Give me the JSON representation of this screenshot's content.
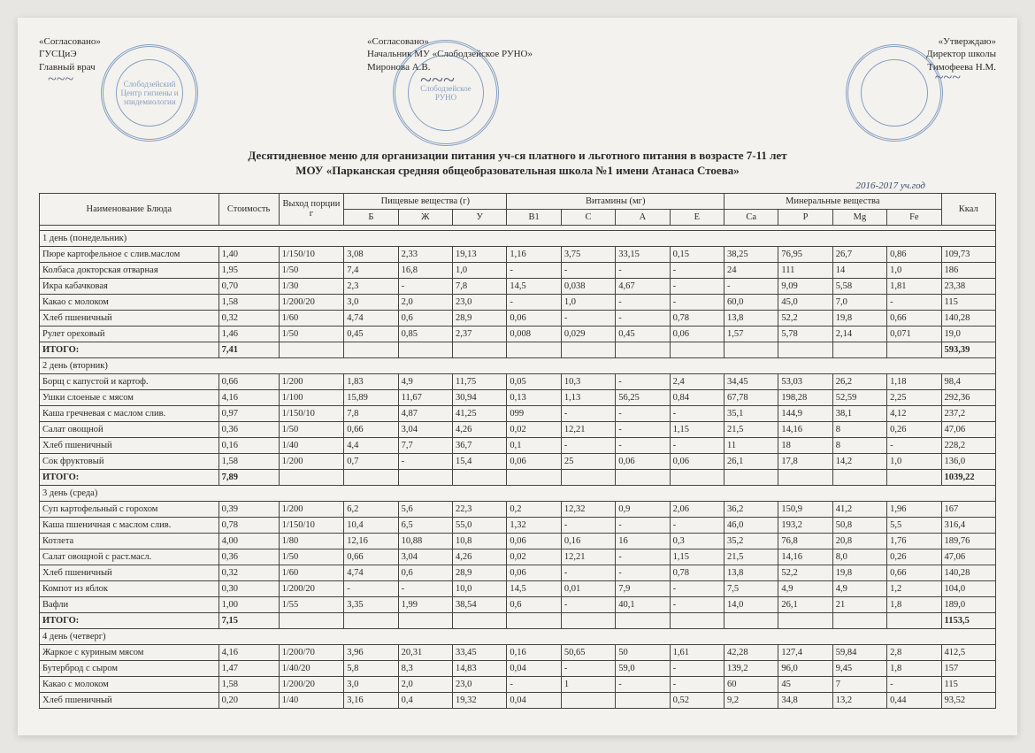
{
  "signatures": {
    "left": {
      "label": "«Согласовано»",
      "org": "ГУСЦиЭ",
      "role": "Главный врач",
      "stamp_text": "Слободзейский Центр гигиены и эпидемиологии"
    },
    "center": {
      "label": "«Согласовано»",
      "role": "Начальник МУ «Слободзейское РУНО»",
      "name": "Миронова А.В.",
      "stamp_text": "Слободзейское РУНО"
    },
    "right": {
      "label": "«Утверждаю»",
      "role": "Директор школы",
      "name": "Тимофеева Н.М.",
      "stamp_text": ""
    }
  },
  "title_line1": "Десятидневное меню для организации питания уч-ся платного и льготного питания в возрасте 7-11 лет",
  "title_line2": "МОУ «Парканская средняя общеобразовательная школа №1 имени Атанаса Стоева»",
  "year_note": "2016-2017 уч.год",
  "header": {
    "name": "Наименование Блюда",
    "cost": "Стоимость",
    "portion": "Выход порции г",
    "nutrients": "Пищевые вещества   (г)",
    "vitamins": "Витамины   (мг)",
    "minerals": "Минеральные вещества",
    "kcal": "Ккал",
    "cols": [
      "Б",
      "Ж",
      "У",
      "В1",
      "С",
      "А",
      "Е",
      "Са",
      "Р",
      "Mg",
      "Fe"
    ]
  },
  "days": [
    {
      "title": "1 день (понедельник)",
      "rows": [
        {
          "name": "Пюре картофельное с слив.маслом",
          "cost": "1,40",
          "portion": "1/150/10",
          "v": [
            "3,08",
            "2,33",
            "19,13",
            "1,16",
            "3,75",
            "33,15",
            "0,15",
            "38,25",
            "76,95",
            "26,7",
            "0,86",
            "109,73"
          ]
        },
        {
          "name": "Колбаса докторская отварная",
          "cost": "1,95",
          "portion": "1/50",
          "v": [
            "7,4",
            "16,8",
            "1,0",
            "-",
            "-",
            "-",
            "-",
            "24",
            "111",
            "14",
            "1,0",
            "186"
          ]
        },
        {
          "name": "Икра кабачковая",
          "cost": "0,70",
          "portion": "1/30",
          "v": [
            "2,3",
            "-",
            "7,8",
            "14,5",
            "0,038",
            "4,67",
            "-",
            "-",
            "9,09",
            "5,58",
            "1,81",
            "23,38"
          ]
        },
        {
          "name": "Какао с молоком",
          "cost": "1,58",
          "portion": "1/200/20",
          "v": [
            "3,0",
            "2,0",
            "23,0",
            "-",
            "1,0",
            "-",
            "-",
            "60,0",
            "45,0",
            "7,0",
            "-",
            "115"
          ]
        },
        {
          "name": "Хлеб пшеничный",
          "cost": "0,32",
          "portion": "1/60",
          "v": [
            "4,74",
            "0,6",
            "28,9",
            "0,06",
            "-",
            "-",
            "0,78",
            "13,8",
            "52,2",
            "19,8",
            "0,66",
            "140,28"
          ]
        },
        {
          "name": "Рулет ореховый",
          "cost": "1,46",
          "portion": "1/50",
          "v": [
            "0,45",
            "0,85",
            "2,37",
            "0,008",
            "0,029",
            "0,45",
            "0,06",
            "1,57",
            "5,78",
            "2,14",
            "0,071",
            "19,0"
          ]
        }
      ],
      "total": {
        "name": "ИТОГО:",
        "cost": "7,41",
        "portion": "",
        "v": [
          "",
          "",
          "",
          "",
          "",
          "",
          "",
          "",
          "",
          "",
          "",
          "593,39"
        ]
      }
    },
    {
      "title": "2 день (вторник)",
      "rows": [
        {
          "name": "Борщ с капустой и картоф.",
          "cost": "0,66",
          "portion": "1/200",
          "v": [
            "1,83",
            "4,9",
            "11,75",
            "0,05",
            "10,3",
            "-",
            "2,4",
            "34,45",
            "53,03",
            "26,2",
            "1,18",
            "98,4"
          ]
        },
        {
          "name": "Ушки слоеные с мясом",
          "cost": "4,16",
          "portion": "1/100",
          "v": [
            "15,89",
            "11,67",
            "30,94",
            "0,13",
            "1,13",
            "56,25",
            "0,84",
            "67,78",
            "198,28",
            "52,59",
            "2,25",
            "292,36"
          ]
        },
        {
          "name": "Каша гречневая  с маслом слив.",
          "cost": "0,97",
          "portion": "1/150/10",
          "v": [
            "7,8",
            "4,87",
            "41,25",
            "099",
            "-",
            "-",
            "-",
            "35,1",
            "144,9",
            "38,1",
            "4,12",
            "237,2"
          ]
        },
        {
          "name": "Салат овощной",
          "cost": "0,36",
          "portion": "1/50",
          "v": [
            "0,66",
            "3,04",
            "4,26",
            "0,02",
            "12,21",
            "-",
            "1,15",
            "21,5",
            "14,16",
            "8",
            "0,26",
            "47,06"
          ]
        },
        {
          "name": "Хлеб пшеничный",
          "cost": "0,16",
          "portion": "1/40",
          "v": [
            "4,4",
            "7,7",
            "36,7",
            "0,1",
            "-",
            "-",
            "-",
            "11",
            "18",
            "8",
            "-",
            "228,2"
          ]
        },
        {
          "name": "Сок фруктовый",
          "cost": "1,58",
          "portion": "1/200",
          "v": [
            "0,7",
            "-",
            "15,4",
            "0,06",
            "25",
            "0,06",
            "0,06",
            "26,1",
            "17,8",
            "14,2",
            "1,0",
            "136,0"
          ]
        }
      ],
      "total": {
        "name": "ИТОГО:",
        "cost": "7,89",
        "portion": "",
        "v": [
          "",
          "",
          "",
          "",
          "",
          "",
          "",
          "",
          "",
          "",
          "",
          "1039,22"
        ]
      }
    },
    {
      "title": "3 день (среда)",
      "rows": [
        {
          "name": "Суп картофельный с горохом",
          "cost": "0,39",
          "portion": "1/200",
          "v": [
            "6,2",
            "5,6",
            "22,3",
            "0,2",
            "12,32",
            "0,9",
            "2,06",
            "36,2",
            "150,9",
            "41,2",
            "1,96",
            "167"
          ]
        },
        {
          "name": "Каша пшеничная с маслом слив.",
          "cost": "0,78",
          "portion": "1/150/10",
          "v": [
            "10,4",
            "6,5",
            "55,0",
            "1,32",
            "-",
            "-",
            "-",
            "46,0",
            "193,2",
            "50,8",
            "5,5",
            "316,4"
          ]
        },
        {
          "name": "Котлета",
          "cost": "4,00",
          "portion": "1/80",
          "v": [
            "12,16",
            "10,88",
            "10,8",
            "0,06",
            "0,16",
            "16",
            "0,3",
            "35,2",
            "76,8",
            "20,8",
            "1,76",
            "189,76"
          ]
        },
        {
          "name": "Салат овощной с раст.масл.",
          "cost": "0,36",
          "portion": "1/50",
          "v": [
            "0,66",
            "3,04",
            "4,26",
            "0,02",
            "12,21",
            "-",
            "1,15",
            "21,5",
            "14,16",
            "8,0",
            "0,26",
            "47,06"
          ]
        },
        {
          "name": "Хлеб пшеничный",
          "cost": "0,32",
          "portion": "1/60",
          "v": [
            "4,74",
            "0,6",
            "28,9",
            "0,06",
            "-",
            "-",
            "0,78",
            "13,8",
            "52,2",
            "19,8",
            "0,66",
            "140,28"
          ]
        },
        {
          "name": "Компот из яблок",
          "cost": "0,30",
          "portion": "1/200/20",
          "v": [
            "-",
            "-",
            "10,0",
            "14,5",
            "0,01",
            "7,9",
            "-",
            "7,5",
            "4,9",
            "4,9",
            "1,2",
            "104,0"
          ]
        },
        {
          "name": "Вафли",
          "cost": "1,00",
          "portion": "1/55",
          "v": [
            "3,35",
            "1,99",
            "38,54",
            "0,6",
            "-",
            "40,1",
            "-",
            "14,0",
            "26,1",
            "21",
            "1,8",
            "189,0"
          ]
        }
      ],
      "total": {
        "name": "ИТОГО:",
        "cost": "7,15",
        "portion": "",
        "v": [
          "",
          "",
          "",
          "",
          "",
          "",
          "",
          "",
          "",
          "",
          "",
          "1153,5"
        ]
      }
    },
    {
      "title": "4 день (четверг)",
      "rows": [
        {
          "name": "Жаркое с куриным мясом",
          "cost": "4,16",
          "portion": "1/200/70",
          "v": [
            "3,96",
            "20,31",
            "33,45",
            "0,16",
            "50,65",
            "50",
            "1,61",
            "42,28",
            "127,4",
            "59,84",
            "2,8",
            "412,5"
          ]
        },
        {
          "name": "Бутерброд с сыром",
          "cost": "1,47",
          "portion": "1/40/20",
          "v": [
            "5,8",
            "8,3",
            "14,83",
            "0,04",
            "-",
            "59,0",
            "-",
            "139,2",
            "96,0",
            "9,45",
            "1,8",
            "157"
          ]
        },
        {
          "name": "Какао с молоком",
          "cost": "1,58",
          "portion": "1/200/20",
          "v": [
            "3,0",
            "2,0",
            "23,0",
            "-",
            "1",
            "-",
            "-",
            "60",
            "45",
            "7",
            "-",
            "115"
          ]
        },
        {
          "name": "Хлеб пшеничный",
          "cost": "0,20",
          "portion": "1/40",
          "v": [
            "3,16",
            "0,4",
            "19,32",
            "0,04",
            "",
            "",
            "0,52",
            "9,2",
            "34,8",
            "13,2",
            "0,44",
            "93,52"
          ]
        }
      ]
    }
  ],
  "style": {
    "page_bg": "#f4f2ee",
    "border_color": "#444",
    "stamp_color": "#2b5aa0",
    "font_size_table": 10.5,
    "font_size_title": 13
  }
}
